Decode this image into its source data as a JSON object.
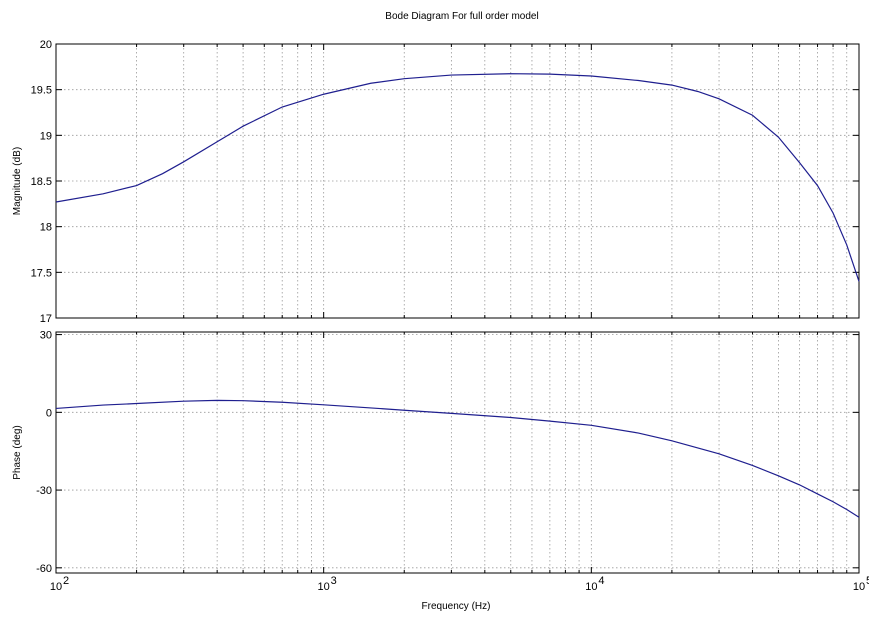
{
  "chart_data": {
    "type": "line",
    "title": "Bode Diagram For full order model",
    "xlabel": "Frequency  (Hz)",
    "xscale": "log",
    "xlim": [
      100,
      100000
    ],
    "x_tick_labels": [
      {
        "base": "10",
        "exp": "2"
      },
      {
        "base": "10",
        "exp": "3"
      },
      {
        "base": "10",
        "exp": "4"
      },
      {
        "base": "10",
        "exp": "5"
      }
    ],
    "grid": true,
    "line_color": "#1f1f8f",
    "panels": [
      {
        "name": "magnitude",
        "ylabel": "Magnitude (dB)",
        "ylim": [
          17,
          20
        ],
        "yticks": [
          17,
          17.5,
          18,
          18.5,
          19,
          19.5,
          20
        ],
        "ytick_labels": [
          "17",
          "17.5",
          "18",
          "18.5",
          "19",
          "19.5",
          "20"
        ],
        "series": [
          {
            "x": [
              100,
              150,
              200,
              250,
              300,
              400,
              500,
              700,
              1000,
              1500,
              2000,
              3000,
              5000,
              7000,
              10000,
              15000,
              20000,
              25000,
              30000,
              40000,
              50000,
              60000,
              70000,
              80000,
              90000,
              100000
            ],
            "values": [
              18.27,
              18.36,
              18.45,
              18.58,
              18.71,
              18.93,
              19.1,
              19.31,
              19.45,
              19.57,
              19.62,
              19.66,
              19.675,
              19.67,
              19.65,
              19.6,
              19.55,
              19.48,
              19.4,
              19.22,
              18.98,
              18.7,
              18.45,
              18.15,
              17.8,
              17.4
            ]
          }
        ]
      },
      {
        "name": "phase",
        "ylabel": "Phase (deg)",
        "ylim": [
          -62,
          31
        ],
        "yticks": [
          -60,
          -30,
          0,
          30
        ],
        "ytick_labels": [
          "-60",
          "-30",
          "0",
          "30"
        ],
        "series": [
          {
            "x": [
              100,
              150,
              200,
              300,
              400,
              500,
              700,
              1000,
              1500,
              2000,
              3000,
              5000,
              7000,
              10000,
              15000,
              20000,
              30000,
              40000,
              50000,
              60000,
              70000,
              80000,
              90000,
              100000
            ],
            "values": [
              1.5,
              2.8,
              3.4,
              4.3,
              4.6,
              4.5,
              3.9,
              2.9,
              1.7,
              0.8,
              -0.4,
              -2.0,
              -3.4,
              -5.0,
              -8.0,
              -11.0,
              -16.0,
              -20.5,
              -24.5,
              -28.0,
              -31.5,
              -34.5,
              -37.5,
              -40.5
            ]
          }
        ]
      }
    ]
  }
}
